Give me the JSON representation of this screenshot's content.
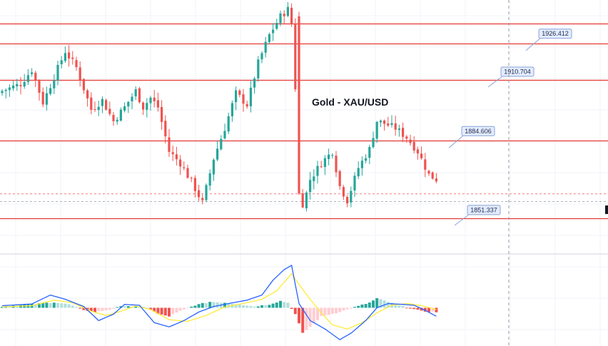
{
  "chart_data": [
    {
      "type": "candlestick",
      "title": "Gold - XAU/USD",
      "ylim": [
        1836,
        1945
      ],
      "horizontal_levels": [
        1935.0,
        1926.412,
        1910.704,
        1884.606,
        1851.337
      ],
      "level_labels": [
        "1926.412",
        "1910.704",
        "1884.606",
        "1851.337"
      ],
      "current_price_dashed": 1861.8,
      "reference_dashed": 1858.5,
      "close_path": [
        [
          0,
          1906
        ],
        [
          5,
          1909
        ],
        [
          8,
          1915
        ],
        [
          11,
          1901
        ],
        [
          14,
          1912
        ],
        [
          17,
          1923
        ],
        [
          20,
          1916
        ],
        [
          24,
          1898
        ],
        [
          27,
          1902
        ],
        [
          30,
          1893
        ],
        [
          33,
          1899
        ],
        [
          36,
          1906
        ],
        [
          38,
          1899
        ],
        [
          40,
          1903
        ],
        [
          42,
          1899
        ],
        [
          45,
          1880
        ],
        [
          48,
          1875
        ],
        [
          51,
          1867
        ],
        [
          54,
          1858
        ],
        [
          57,
          1877
        ],
        [
          60,
          1890
        ],
        [
          63,
          1905
        ],
        [
          66,
          1900
        ],
        [
          69,
          1918
        ],
        [
          72,
          1930
        ],
        [
          75,
          1938
        ],
        [
          77,
          1941
        ],
        [
          78,
          1935
        ],
        [
          80,
          1880
        ],
        [
          81,
          1856
        ],
        [
          83,
          1868
        ],
        [
          86,
          1875
        ],
        [
          89,
          1880
        ],
        [
          91,
          1865
        ],
        [
          93,
          1859
        ],
        [
          96,
          1873
        ],
        [
          99,
          1881
        ],
        [
          101,
          1893
        ],
        [
          103,
          1892
        ],
        [
          106,
          1890
        ],
        [
          109,
          1886
        ],
        [
          112,
          1880
        ],
        [
          115,
          1870
        ],
        [
          117,
          1868
        ]
      ]
    },
    {
      "type": "histogram",
      "indicator": "MACD",
      "ylim": [
        -9,
        12
      ],
      "histogram_path": [
        [
          0,
          0.3
        ],
        [
          6,
          0.7
        ],
        [
          10,
          1.0
        ],
        [
          14,
          1.3
        ],
        [
          18,
          0.8
        ],
        [
          21,
          -0.3
        ],
        [
          25,
          -1.0
        ],
        [
          29,
          -0.4
        ],
        [
          33,
          0.5
        ],
        [
          36,
          0.3
        ],
        [
          39,
          0.1
        ],
        [
          42,
          -1.5
        ],
        [
          45,
          -2.0
        ],
        [
          48,
          -0.8
        ],
        [
          52,
          0.6
        ],
        [
          56,
          1.4
        ],
        [
          60,
          1.2
        ],
        [
          64,
          0.8
        ],
        [
          68,
          0.3
        ],
        [
          72,
          0.8
        ],
        [
          75,
          1.6
        ],
        [
          77,
          1.2
        ],
        [
          79,
          -1.5
        ],
        [
          81,
          -6.0
        ],
        [
          83,
          -4.5
        ],
        [
          86,
          -2.0
        ],
        [
          90,
          -1.2
        ],
        [
          93,
          -0.4
        ],
        [
          96,
          0.4
        ],
        [
          99,
          1.2
        ],
        [
          101,
          2.2
        ],
        [
          104,
          1.4
        ],
        [
          107,
          0.5
        ],
        [
          110,
          -0.1
        ],
        [
          113,
          -0.8
        ],
        [
          117,
          -1.0
        ]
      ],
      "macd_path": [
        [
          0,
          0.5
        ],
        [
          8,
          0.9
        ],
        [
          13,
          3.0
        ],
        [
          17,
          2.0
        ],
        [
          22,
          0.3
        ],
        [
          26,
          -3.0
        ],
        [
          30,
          -1.5
        ],
        [
          33,
          0.8
        ],
        [
          37,
          0.6
        ],
        [
          41,
          -3.5
        ],
        [
          45,
          -4.5
        ],
        [
          49,
          -3.0
        ],
        [
          53,
          -1.0
        ],
        [
          57,
          0.3
        ],
        [
          61,
          1.0
        ],
        [
          66,
          1.8
        ],
        [
          70,
          3.0
        ],
        [
          73,
          6.5
        ],
        [
          76,
          9.0
        ],
        [
          78,
          10.0
        ],
        [
          80,
          1.0
        ],
        [
          83,
          -3.0
        ],
        [
          87,
          -5.0
        ],
        [
          91,
          -7.5
        ],
        [
          94,
          -6.0
        ],
        [
          98,
          -3.0
        ],
        [
          101,
          0.0
        ],
        [
          104,
          1.0
        ],
        [
          108,
          0.8
        ],
        [
          111,
          0.6
        ],
        [
          114,
          -0.6
        ],
        [
          117,
          -2.0
        ]
      ],
      "signal_path": [
        [
          0,
          0.2
        ],
        [
          8,
          0.5
        ],
        [
          14,
          1.8
        ],
        [
          19,
          1.2
        ],
        [
          24,
          -0.8
        ],
        [
          28,
          -1.8
        ],
        [
          32,
          -0.8
        ],
        [
          36,
          0.4
        ],
        [
          40,
          -0.4
        ],
        [
          45,
          -2.8
        ],
        [
          50,
          -3.2
        ],
        [
          55,
          -1.8
        ],
        [
          60,
          0.2
        ],
        [
          65,
          1.0
        ],
        [
          70,
          2.0
        ],
        [
          74,
          4.0
        ],
        [
          78,
          8.0
        ],
        [
          80,
          5.5
        ],
        [
          83,
          2.0
        ],
        [
          86,
          -1.2
        ],
        [
          89,
          -4.0
        ],
        [
          93,
          -5.0
        ],
        [
          97,
          -3.5
        ],
        [
          101,
          -1.2
        ],
        [
          105,
          0.6
        ],
        [
          109,
          1.0
        ],
        [
          113,
          0.5
        ],
        [
          117,
          -0.4
        ]
      ]
    }
  ],
  "colors": {
    "up": "#26a69a",
    "down": "#ef5350",
    "hist_up_strong": "#26a69a",
    "hist_up_weak": "#b2dfdb",
    "hist_down_strong": "#ef5350",
    "hist_down_weak": "#ffcdd2",
    "level_line": "#e53935",
    "macd_line": "#2962ff",
    "signal_line": "#ffeb3b",
    "grid": "#f0f3fa",
    "label_bg": "#e3ecff",
    "label_border": "#8aa2d8"
  }
}
